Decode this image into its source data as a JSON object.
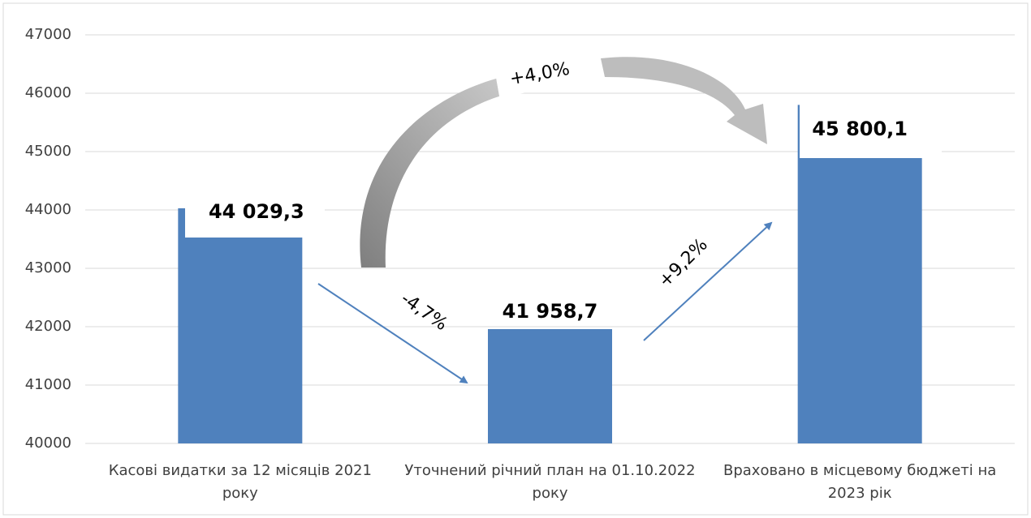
{
  "chart_data": {
    "type": "bar",
    "categories": [
      "Касові видатки за 12 місяців 2021 року",
      "Уточнений річний план на 01.10.2022 року",
      "Враховано в місцевому бюджеті на 2023 рік"
    ],
    "values": [
      44029.3,
      41958.7,
      45800.1
    ],
    "value_labels": [
      "44 029,3",
      "41 958,7",
      "45 800,1"
    ],
    "color": "#4f81bd",
    "ylim": [
      40000,
      47000
    ],
    "yticks": [
      40000,
      41000,
      42000,
      43000,
      44000,
      45000,
      46000,
      47000
    ],
    "grid": true,
    "annotations": [
      "+4,0%",
      "-4,7%",
      "+9,2%"
    ]
  }
}
